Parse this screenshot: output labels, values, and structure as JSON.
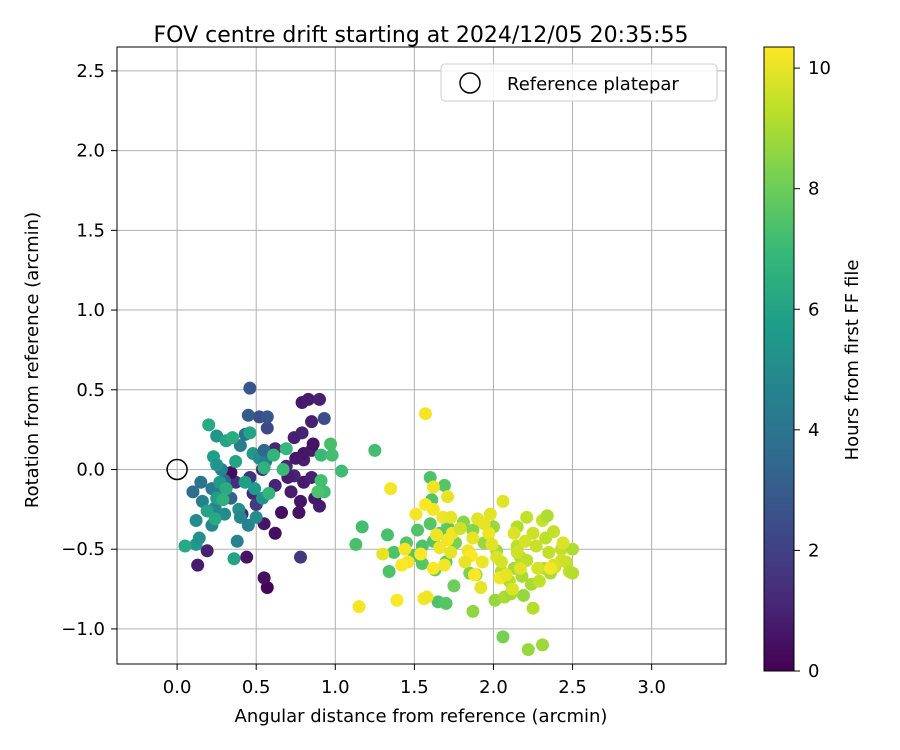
{
  "chart_data": {
    "type": "scatter",
    "title": "FOV centre drift starting at 2024/12/05 20:35:55",
    "xlabel": "Angular distance from reference (arcmin)",
    "ylabel": "Rotation from reference (arcmin)",
    "xlim": [
      -0.38,
      3.47
    ],
    "ylim": [
      -1.22,
      2.65
    ],
    "xticks": [
      "0.0",
      "0.5",
      "1.0",
      "1.5",
      "2.0",
      "2.5",
      "3.0"
    ],
    "xtick_values": [
      0,
      0.5,
      1,
      1.5,
      2,
      2.5,
      3
    ],
    "yticks": [
      "−1.0",
      "−0.5",
      "0.0",
      "0.5",
      "1.0",
      "1.5",
      "2.0",
      "2.5"
    ],
    "ytick_values": [
      -1,
      -0.5,
      0,
      0.5,
      1,
      1.5,
      2,
      2.5
    ],
    "grid": true,
    "legend": {
      "position": "top-right",
      "entries": [
        {
          "label": "Reference platepar",
          "marker": "open-circle"
        }
      ]
    },
    "reference_point": [
      0,
      0
    ],
    "colorbar": {
      "label": "Hours from first FF file",
      "min": 0,
      "max": 10.35,
      "ticks": [
        "0",
        "2",
        "4",
        "6",
        "8",
        "10"
      ],
      "tick_values": [
        0,
        2,
        4,
        6,
        8,
        10
      ],
      "colormap": "viridis"
    },
    "series": [
      {
        "color_by": "hours",
        "points": [
          [
            0.57,
            -0.74,
            0.1
          ],
          [
            0.55,
            -0.68,
            0.4
          ],
          [
            0.44,
            -0.55,
            0.5
          ],
          [
            0.62,
            -0.4,
            0.4
          ],
          [
            0.55,
            -0.34,
            0.6
          ],
          [
            0.66,
            -0.27,
            0.4
          ],
          [
            0.77,
            -0.27,
            0.5
          ],
          [
            0.78,
            -0.2,
            0.6
          ],
          [
            0.9,
            -0.23,
            0.8
          ],
          [
            0.87,
            -0.18,
            0.7
          ],
          [
            0.72,
            -0.14,
            0.8
          ],
          [
            0.8,
            -0.08,
            0.7
          ],
          [
            0.85,
            -0.05,
            0.9
          ],
          [
            0.74,
            -0.04,
            1.0
          ],
          [
            0.69,
            0.02,
            1.2
          ],
          [
            0.8,
            0.06,
            0.9
          ],
          [
            0.85,
            0.12,
            0.8
          ],
          [
            0.74,
            0.2,
            0.9
          ],
          [
            0.79,
            0.23,
            1.0
          ],
          [
            0.85,
            0.3,
            0.9
          ],
          [
            0.79,
            0.42,
            0.7
          ],
          [
            0.83,
            0.44,
            0.8
          ],
          [
            0.9,
            0.44,
            0.9
          ],
          [
            0.93,
            0.32,
            2.5
          ],
          [
            0.86,
            0.16,
            0.5
          ],
          [
            0.8,
            0.1,
            0.6
          ],
          [
            0.75,
            0.07,
            0.7
          ],
          [
            0.7,
            -0.05,
            0.8
          ],
          [
            0.62,
            -0.1,
            1.0
          ],
          [
            0.48,
            -0.15,
            1.2
          ],
          [
            0.37,
            -0.08,
            1.4
          ],
          [
            0.34,
            -0.02,
            0.3
          ],
          [
            0.46,
            -0.05,
            1.5
          ],
          [
            0.5,
            -0.22,
            1.8
          ],
          [
            0.41,
            -0.28,
            1.0
          ],
          [
            0.54,
            0.0,
            1.3
          ],
          [
            0.62,
            0.13,
            1.1
          ],
          [
            0.57,
            0.26,
            2.3
          ],
          [
            0.52,
            0.33,
            2.5
          ],
          [
            0.57,
            0.33,
            2.8
          ],
          [
            0.45,
            0.34,
            3.0
          ],
          [
            0.46,
            0.51,
            2.8
          ],
          [
            0.78,
            -0.55,
            1.6
          ],
          [
            0.13,
            -0.6,
            0.8
          ],
          [
            0.19,
            -0.51,
            0.9
          ],
          [
            0.12,
            -0.47,
            5.5
          ],
          [
            0.14,
            -0.43,
            5.2
          ],
          [
            0.12,
            -0.32,
            5.0
          ],
          [
            0.22,
            -0.35,
            4.8
          ],
          [
            0.38,
            -0.45,
            4.6
          ],
          [
            0.1,
            -0.14,
            3.7
          ],
          [
            0.15,
            -0.08,
            4.0
          ],
          [
            0.22,
            -0.12,
            4.2
          ],
          [
            0.26,
            -0.15,
            4.4
          ],
          [
            0.16,
            -0.2,
            4.5
          ],
          [
            0.24,
            -0.24,
            4.8
          ],
          [
            0.3,
            -0.28,
            5.0
          ],
          [
            0.34,
            -0.18,
            3.2
          ],
          [
            0.3,
            -0.07,
            3.5
          ],
          [
            0.28,
            0.0,
            4.6
          ],
          [
            0.39,
            -0.25,
            5.2
          ],
          [
            0.4,
            -0.3,
            4.8
          ],
          [
            0.45,
            -0.35,
            4.6
          ],
          [
            0.5,
            -0.3,
            5.0
          ],
          [
            0.54,
            -0.18,
            5.4
          ],
          [
            0.49,
            -0.12,
            5.6
          ],
          [
            0.43,
            -0.08,
            5.8
          ],
          [
            0.37,
            0.05,
            6.0
          ],
          [
            0.4,
            0.15,
            4.4
          ],
          [
            0.43,
            0.22,
            4.0
          ],
          [
            0.46,
            0.23,
            6.0
          ],
          [
            0.48,
            0.1,
            5.5
          ],
          [
            0.52,
            0.07,
            5.0
          ],
          [
            0.56,
            0.05,
            4.5
          ],
          [
            0.55,
            0.12,
            3.5
          ],
          [
            0.25,
            0.21,
            5.4
          ],
          [
            0.31,
            0.18,
            6.0
          ],
          [
            0.35,
            0.2,
            6.4
          ],
          [
            0.2,
            0.28,
            6.2
          ],
          [
            0.23,
            0.08,
            5.8
          ],
          [
            0.25,
            0.03,
            5.4
          ],
          [
            0.27,
            -0.08,
            5.6
          ],
          [
            0.25,
            -0.18,
            5.8
          ],
          [
            0.19,
            -0.26,
            6.0
          ],
          [
            0.24,
            -0.31,
            6.2
          ],
          [
            0.36,
            -0.56,
            6.0
          ],
          [
            0.05,
            -0.48,
            6.2
          ],
          [
            0.31,
            -0.12,
            6.4
          ],
          [
            0.29,
            -0.19,
            6.6
          ],
          [
            0.55,
            0.01,
            6.6
          ],
          [
            0.61,
            0.09,
            6.8
          ],
          [
            0.58,
            -0.15,
            6.8
          ],
          [
            0.69,
            0.13,
            6.9
          ],
          [
            0.67,
            0.0,
            7.0
          ],
          [
            0.91,
            0.09,
            7.0
          ],
          [
            0.91,
            -0.07,
            7.2
          ],
          [
            0.93,
            -0.14,
            7.1
          ],
          [
            0.89,
            -0.14,
            7.4
          ],
          [
            0.98,
            0.09,
            7.2
          ],
          [
            1.04,
            -0.01,
            7.1
          ],
          [
            0.97,
            0.16,
            7.3
          ],
          [
            1.25,
            0.12,
            7.2
          ],
          [
            1.17,
            -0.36,
            7.2
          ],
          [
            1.13,
            -0.47,
            7.3
          ],
          [
            1.33,
            -0.41,
            7.3
          ],
          [
            1.34,
            -0.64,
            7.4
          ],
          [
            1.37,
            -0.52,
            7.4
          ],
          [
            1.45,
            -0.46,
            7.6
          ],
          [
            1.52,
            -0.38,
            7.5
          ],
          [
            1.5,
            -0.54,
            7.6
          ],
          [
            1.55,
            -0.48,
            7.4
          ],
          [
            1.55,
            -0.59,
            7.6
          ],
          [
            1.6,
            -0.05,
            7.4
          ],
          [
            1.61,
            -0.19,
            7.5
          ],
          [
            1.6,
            -0.34,
            7.6
          ],
          [
            1.62,
            -0.45,
            7.5
          ],
          [
            1.66,
            -0.4,
            7.6
          ],
          [
            1.69,
            -0.1,
            7.6
          ],
          [
            1.71,
            -0.36,
            7.7
          ],
          [
            1.7,
            -0.58,
            7.7
          ],
          [
            1.65,
            -0.83,
            7.4
          ],
          [
            1.7,
            -0.84,
            7.6
          ],
          [
            1.63,
            -0.63,
            7.8
          ],
          [
            1.75,
            -0.73,
            8.0
          ],
          [
            1.76,
            -0.46,
            8.2
          ],
          [
            1.81,
            -0.33,
            8.5
          ],
          [
            1.87,
            -0.38,
            8.4
          ],
          [
            1.85,
            -0.65,
            8.3
          ],
          [
            1.87,
            -0.89,
            8.6
          ],
          [
            1.89,
            -0.66,
            8.8
          ],
          [
            1.94,
            -0.46,
            8.7
          ],
          [
            2.0,
            -0.36,
            8.8
          ],
          [
            2.02,
            -0.51,
            8.9
          ],
          [
            2.01,
            -0.82,
            8.7
          ],
          [
            2.05,
            -0.64,
            9.1
          ],
          [
            2.07,
            -0.8,
            9.0
          ],
          [
            2.06,
            -1.05,
            8.2
          ],
          [
            2.1,
            -0.7,
            9.2
          ],
          [
            2.13,
            -0.62,
            9.0
          ],
          [
            2.11,
            -0.78,
            8.9
          ],
          [
            2.15,
            -0.48,
            9.3
          ],
          [
            2.15,
            -0.36,
            9.2
          ],
          [
            2.17,
            -0.55,
            9.1
          ],
          [
            2.18,
            -0.67,
            9.0
          ],
          [
            2.19,
            -0.79,
            8.7
          ],
          [
            2.21,
            -0.57,
            9.3
          ],
          [
            2.21,
            -0.3,
            9.4
          ],
          [
            2.22,
            -1.13,
            8.7
          ],
          [
            2.24,
            -0.72,
            9.0
          ],
          [
            2.25,
            -0.87,
            9.2
          ],
          [
            2.27,
            -0.48,
            9.5
          ],
          [
            2.29,
            -0.7,
            9.4
          ],
          [
            2.31,
            -0.32,
            9.5
          ],
          [
            2.31,
            -1.1,
            8.8
          ],
          [
            2.32,
            -0.62,
            9.2
          ],
          [
            2.33,
            -0.43,
            9.3
          ],
          [
            2.34,
            -0.29,
            9.1
          ],
          [
            2.35,
            -0.52,
            9.4
          ],
          [
            2.36,
            -0.65,
            9.0
          ],
          [
            2.38,
            -0.39,
            9.4
          ],
          [
            2.39,
            -0.61,
            9.6
          ],
          [
            2.43,
            -0.5,
            9.4
          ],
          [
            2.46,
            -0.58,
            9.5
          ],
          [
            2.48,
            -0.64,
            9.3
          ],
          [
            2.5,
            -0.5,
            9.1
          ],
          [
            2.43,
            -0.57,
            9.6
          ],
          [
            2.5,
            -0.65,
            9.2
          ],
          [
            2.38,
            -0.6,
            9.7
          ],
          [
            2.44,
            -0.46,
            9.8
          ],
          [
            2.28,
            -0.62,
            9.7
          ],
          [
            1.57,
            0.35,
            10.2
          ],
          [
            1.35,
            -0.12,
            10.2
          ],
          [
            1.62,
            -0.11,
            10.1
          ],
          [
            1.71,
            -0.17,
            10.0
          ],
          [
            1.62,
            -0.25,
            10.2
          ],
          [
            1.57,
            -0.22,
            10.3
          ],
          [
            1.51,
            -0.28,
            10.2
          ],
          [
            1.68,
            -0.3,
            10.1
          ],
          [
            1.73,
            -0.3,
            10.0
          ],
          [
            1.74,
            -0.4,
            10.1
          ],
          [
            1.71,
            -0.44,
            10.2
          ],
          [
            1.66,
            -0.49,
            10.1
          ],
          [
            1.54,
            -0.53,
            10.3
          ],
          [
            1.46,
            -0.58,
            10.2
          ],
          [
            1.42,
            -0.6,
            10.3
          ],
          [
            1.44,
            -0.5,
            10.2
          ],
          [
            1.3,
            -0.53,
            10.0
          ],
          [
            1.15,
            -0.86,
            10.2
          ],
          [
            1.39,
            -0.82,
            10.3
          ],
          [
            1.56,
            -0.81,
            10.2
          ],
          [
            1.58,
            -0.8,
            10.1
          ],
          [
            1.62,
            -0.62,
            10.3
          ],
          [
            1.69,
            -0.6,
            10.2
          ],
          [
            1.84,
            -0.51,
            10.1
          ],
          [
            1.86,
            -0.54,
            10.3
          ],
          [
            1.87,
            -0.43,
            10.0
          ],
          [
            1.9,
            -0.31,
            9.9
          ],
          [
            1.94,
            -0.34,
            10.0
          ],
          [
            1.97,
            -0.4,
            10.1
          ],
          [
            1.99,
            -0.47,
            9.9
          ],
          [
            2.02,
            -0.55,
            9.8
          ],
          [
            2.04,
            -0.68,
            10.2
          ],
          [
            2.06,
            -0.2,
            9.9
          ],
          [
            2.08,
            -0.66,
            10.0
          ],
          [
            2.13,
            -0.4,
            9.8
          ],
          [
            2.15,
            -0.52,
            9.6
          ],
          [
            1.88,
            -0.66,
            10.3
          ],
          [
            2.36,
            -0.62,
            10.2
          ],
          [
            2.05,
            -0.58,
            9.7
          ],
          [
            1.93,
            -0.58,
            10.1
          ],
          [
            1.82,
            -0.58,
            10.0
          ],
          [
            1.98,
            -0.28,
            9.9
          ],
          [
            2.2,
            -0.45,
            9.7
          ],
          [
            2.25,
            -0.4,
            9.6
          ],
          [
            1.79,
            -0.37,
            9.6
          ],
          [
            1.92,
            -0.74,
            10.0
          ],
          [
            2.12,
            -0.75,
            9.8
          ],
          [
            1.73,
            -0.52,
            10.0
          ],
          [
            1.64,
            -0.41,
            10.1
          ],
          [
            2.17,
            -0.62,
            9.9
          ]
        ]
      }
    ]
  }
}
